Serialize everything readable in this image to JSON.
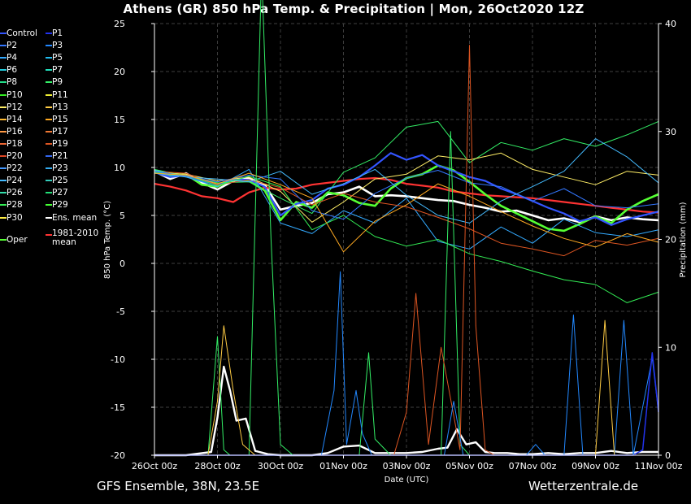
{
  "header": {
    "title": "Athens  (GR)  850 hPa Temp. & Precipitation | Mon, 26Oct2020 12Z"
  },
  "footer": {
    "left": "GFS Ensemble, 38N, 23.5E",
    "right": "Wetterzentrale.de"
  },
  "legend": {
    "items": [
      {
        "label": "Control",
        "color": "#3355ff"
      },
      {
        "label": "P1",
        "color": "#2233ee"
      },
      {
        "label": "P2",
        "color": "#3377ff"
      },
      {
        "label": "P3",
        "color": "#2288ff"
      },
      {
        "label": "P4",
        "color": "#33aaff"
      },
      {
        "label": "P5",
        "color": "#22bbee"
      },
      {
        "label": "P6",
        "color": "#22ccdd"
      },
      {
        "label": "P7",
        "color": "#22ddbb"
      },
      {
        "label": "P8",
        "color": "#22dd88"
      },
      {
        "label": "P9",
        "color": "#33ee66"
      },
      {
        "label": "P10",
        "color": "#33ee22"
      },
      {
        "label": "P11",
        "color": "#eeee33"
      },
      {
        "label": "P12",
        "color": "#ffee66"
      },
      {
        "label": "P13",
        "color": "#ffcc44"
      },
      {
        "label": "P14",
        "color": "#ffbb33"
      },
      {
        "label": "P15",
        "color": "#ffaa22"
      },
      {
        "label": "P16",
        "color": "#ff9944"
      },
      {
        "label": "P17",
        "color": "#ee7733"
      },
      {
        "label": "P18",
        "color": "#ee6633"
      },
      {
        "label": "P19",
        "color": "#dd5522"
      },
      {
        "label": "P20",
        "color": "#dd4422"
      },
      {
        "label": "P21",
        "color": "#3366ee"
      },
      {
        "label": "P22",
        "color": "#4499ff"
      },
      {
        "label": "P23",
        "color": "#33aaee"
      },
      {
        "label": "P24",
        "color": "#44bbff"
      },
      {
        "label": "P25",
        "color": "#33ccbb"
      },
      {
        "label": "P26",
        "color": "#33ddaa"
      },
      {
        "label": "P27",
        "color": "#22dd77"
      },
      {
        "label": "P28",
        "color": "#33ee55"
      },
      {
        "label": "P29",
        "color": "#44ff33"
      },
      {
        "label": "P30",
        "color": "#ffee44"
      },
      {
        "label": "Ens. mean",
        "color": "#ffffff"
      },
      {
        "label": "1981-2010 mean",
        "color": "#ff3333"
      },
      {
        "label": "Oper",
        "color": "#55ff33"
      }
    ]
  },
  "chart_data": {
    "type": "line",
    "title": "Athens  (GR)  850 hPa Temp. & Precipitation | Mon, 26Oct2020 12Z",
    "xlabel": "Date (UTC)",
    "ylabel": "850 hPa Temp. (°C)",
    "ylabel_right": "Precipitation (mm)",
    "x_range_days": [
      0,
      16
    ],
    "ylim": [
      -20,
      25
    ],
    "ylim_right": [
      0,
      40
    ],
    "yticks": [
      -20,
      -15,
      -10,
      -5,
      0,
      5,
      10,
      15,
      20,
      25
    ],
    "yticks_right": [
      0,
      10,
      20,
      30,
      40
    ],
    "xtick_labels": [
      "26Oct 00z",
      "28Oct 00z",
      "30Oct 00z",
      "01Nov 00z",
      "03Nov 00z",
      "05Nov 00z",
      "07Nov 00z",
      "09Nov 00z",
      "11Nov 00z"
    ],
    "xtick_days": [
      0,
      2,
      4,
      6,
      8,
      10,
      12,
      14,
      16
    ],
    "grid": true,
    "legend_position": "left",
    "series": [
      {
        "name": "Ens. mean",
        "kind": "temp",
        "color": "#ffffff",
        "width": 2.6,
        "x": [
          0,
          0.5,
          1,
          1.5,
          2,
          2.5,
          3,
          3.5,
          4,
          4.5,
          5,
          5.5,
          6,
          6.5,
          7,
          7.5,
          8,
          8.5,
          9,
          9.5,
          10,
          10.5,
          11,
          11.5,
          12,
          12.5,
          13,
          13.5,
          14,
          14.5,
          15,
          15.5,
          16
        ],
        "y": [
          9.6,
          8.8,
          9.4,
          8.4,
          7.7,
          8.6,
          8.9,
          8.2,
          5.6,
          6.0,
          6.3,
          7.2,
          7.4,
          8.0,
          7.0,
          7.1,
          7.0,
          6.8,
          6.6,
          6.5,
          6.1,
          5.8,
          5.4,
          5.5,
          5.0,
          4.5,
          4.7,
          4.3,
          4.9,
          4.5,
          4.8,
          4.6,
          4.5
        ]
      },
      {
        "name": "1981-2010 mean",
        "kind": "temp",
        "color": "#ff3333",
        "width": 2.2,
        "x": [
          0,
          0.5,
          1,
          1.5,
          2,
          2.5,
          3,
          3.5,
          4,
          4.5,
          5,
          5.5,
          6,
          6.5,
          7,
          7.5,
          8,
          8.5,
          9,
          9.5,
          10,
          10.5,
          11,
          11.5,
          12,
          12.5,
          13,
          13.5,
          14,
          14.5,
          15,
          15.5,
          16
        ],
        "y": [
          8.3,
          8.0,
          7.6,
          7.0,
          6.8,
          6.4,
          7.4,
          7.9,
          7.7,
          7.8,
          8.2,
          8.4,
          8.6,
          8.8,
          8.9,
          8.7,
          8.3,
          8.1,
          7.9,
          7.5,
          7.3,
          7.1,
          7.0,
          6.9,
          6.8,
          6.6,
          6.4,
          6.2,
          6.0,
          5.8,
          5.6,
          5.4,
          5.3
        ]
      },
      {
        "name": "Oper",
        "kind": "temp",
        "color": "#55ff33",
        "width": 2.6,
        "x": [
          0,
          0.5,
          1,
          1.5,
          2,
          2.5,
          3,
          3.5,
          4,
          4.5,
          5,
          5.5,
          6,
          6.5,
          7,
          7.5,
          8,
          8.5,
          9,
          9.5,
          10,
          10.5,
          11,
          11.5,
          12,
          12.5,
          13,
          13.5,
          14,
          14.5,
          15,
          15.5,
          16
        ],
        "y": [
          9.7,
          9.2,
          9.3,
          8.2,
          8.0,
          8.8,
          8.6,
          7.6,
          4.5,
          6.4,
          5.8,
          7.4,
          7.1,
          6.3,
          6.0,
          7.8,
          8.9,
          9.3,
          10.2,
          9.7,
          8.5,
          7.2,
          6.0,
          5.2,
          4.4,
          3.6,
          3.4,
          4.1,
          4.9,
          4.2,
          5.6,
          6.5,
          7.2
        ]
      },
      {
        "name": "Control",
        "kind": "temp",
        "color": "#3355ff",
        "width": 2.2,
        "x": [
          0,
          0.5,
          1,
          1.5,
          2,
          2.5,
          3,
          3.5,
          4,
          4.5,
          5,
          5.5,
          6,
          6.5,
          7,
          7.5,
          8,
          8.5,
          9,
          9.5,
          10,
          10.5,
          11,
          11.5,
          12,
          12.5,
          13,
          13.5,
          14,
          14.5,
          15,
          15.5,
          16
        ],
        "y": [
          9.5,
          9.0,
          9.2,
          8.6,
          8.2,
          8.8,
          8.7,
          8.0,
          5.0,
          6.2,
          6.6,
          7.8,
          8.2,
          9.0,
          10.2,
          11.5,
          10.8,
          11.3,
          10.2,
          9.6,
          9.0,
          8.6,
          7.8,
          7.2,
          6.5,
          5.8,
          5.2,
          4.4,
          4.8,
          4.0,
          4.6,
          5.0,
          5.4
        ]
      },
      {
        "name": "P4",
        "kind": "temp",
        "color": "#33aaff",
        "width": 1,
        "x": [
          0,
          1,
          2,
          3,
          4,
          5,
          6,
          7,
          8,
          9,
          10,
          11,
          12,
          13,
          14,
          15,
          16
        ],
        "y": [
          9.4,
          9.0,
          8.0,
          9.8,
          4.2,
          3.1,
          5.5,
          4.2,
          6.8,
          2.3,
          1.5,
          3.8,
          2.1,
          4.6,
          3.2,
          2.8,
          3.5
        ]
      },
      {
        "name": "P9",
        "kind": "temp",
        "color": "#33ee66",
        "width": 1,
        "x": [
          0,
          1,
          2,
          3,
          4,
          5,
          6,
          7,
          8,
          9,
          10,
          11,
          12,
          13,
          14,
          15,
          16
        ],
        "y": [
          9.8,
          9.1,
          8.4,
          8.5,
          6.8,
          5.2,
          9.5,
          11.0,
          14.2,
          14.8,
          10.5,
          12.6,
          11.8,
          13.0,
          12.2,
          13.4,
          14.8
        ]
      },
      {
        "name": "P12",
        "kind": "temp",
        "color": "#ffee66",
        "width": 1,
        "x": [
          0,
          1,
          2,
          3,
          4,
          5,
          6,
          7,
          8,
          9,
          10,
          11,
          12,
          13,
          14,
          15,
          16
        ],
        "y": [
          9.5,
          9.3,
          8.6,
          9.0,
          7.5,
          4.3,
          6.4,
          8.8,
          9.3,
          11.2,
          10.8,
          11.5,
          9.8,
          9.0,
          8.2,
          9.6,
          9.2
        ]
      },
      {
        "name": "P19",
        "kind": "temp",
        "color": "#dd5522",
        "width": 1,
        "x": [
          0,
          1,
          2,
          3,
          4,
          5,
          6,
          7,
          8,
          9,
          10,
          11,
          12,
          13,
          14,
          15,
          16
        ],
        "y": [
          9.6,
          9.4,
          8.2,
          8.7,
          7.9,
          6.1,
          7.3,
          6.4,
          5.9,
          4.8,
          3.6,
          2.1,
          1.5,
          0.8,
          2.4,
          1.9,
          2.6
        ]
      },
      {
        "name": "P24",
        "kind": "temp",
        "color": "#44bbff",
        "width": 1,
        "x": [
          0,
          1,
          2,
          3,
          4,
          5,
          6,
          7,
          8,
          9,
          10,
          11,
          12,
          13,
          14,
          15,
          16
        ],
        "y": [
          9.7,
          9.0,
          8.8,
          8.5,
          9.6,
          7.2,
          8.3,
          9.8,
          7.1,
          5.0,
          4.2,
          6.5,
          8.0,
          9.6,
          13.0,
          11.1,
          8.4
        ]
      },
      {
        "name": "P28",
        "kind": "temp",
        "color": "#33ee55",
        "width": 1,
        "x": [
          0,
          1,
          2,
          3,
          4,
          5,
          6,
          7,
          8,
          9,
          10,
          11,
          12,
          13,
          14,
          15,
          16
        ],
        "y": [
          9.5,
          9.2,
          8.1,
          9.1,
          8.0,
          3.5,
          5.0,
          2.8,
          1.8,
          2.5,
          1.0,
          0.2,
          -0.8,
          -1.7,
          -2.2,
          -4.1,
          -3.0
        ]
      },
      {
        "name": "P2",
        "kind": "temp",
        "color": "#3377ff",
        "width": 1,
        "x": [
          0,
          1,
          2,
          3,
          4,
          5,
          6,
          7,
          8,
          9,
          10,
          11,
          12,
          13,
          14,
          15,
          16
        ],
        "y": [
          9.6,
          9.1,
          8.5,
          9.2,
          8.8,
          5.5,
          4.6,
          7.3,
          8.9,
          9.7,
          8.4,
          8.0,
          6.5,
          7.8,
          6.0,
          5.8,
          6.2
        ]
      },
      {
        "name": "P15",
        "kind": "temp",
        "color": "#ffaa22",
        "width": 1,
        "x": [
          0,
          1,
          2,
          3,
          4,
          5,
          6,
          7,
          8,
          9,
          10,
          11,
          12,
          13,
          14,
          15,
          16
        ],
        "y": [
          9.4,
          9.2,
          8.3,
          9.4,
          8.2,
          6.8,
          1.2,
          4.4,
          6.1,
          8.3,
          7.0,
          5.4,
          3.9,
          2.6,
          1.7,
          3.1,
          2.2
        ]
      },
      {
        "name": "Ens. mean precip",
        "kind": "precip",
        "color": "#ffffff",
        "width": 2.4,
        "x": [
          0,
          1,
          1.8,
          2.0,
          2.2,
          2.4,
          2.6,
          2.9,
          3.2,
          3.6,
          4.0,
          4.5,
          5.0,
          5.5,
          6.0,
          6.5,
          7.0,
          7.5,
          8.0,
          8.5,
          9.0,
          9.3,
          9.6,
          9.9,
          10.2,
          10.5,
          10.8,
          11.2,
          11.6,
          12.0,
          12.5,
          13.0,
          13.5,
          14.0,
          14.5,
          15.0,
          15.5,
          16.0
        ],
        "y": [
          0,
          0,
          0.3,
          3.5,
          8.2,
          6.0,
          3.2,
          3.4,
          0.4,
          0.1,
          0,
          0,
          0,
          0.2,
          0.8,
          0.9,
          0.2,
          0.2,
          0.2,
          0.3,
          0.6,
          0.7,
          2.4,
          1.0,
          1.2,
          0.3,
          0.2,
          0.2,
          0.1,
          0.1,
          0.2,
          0.1,
          0.2,
          0.2,
          0.4,
          0.2,
          0.3,
          0.3
        ]
      },
      {
        "name": "P9 precip",
        "kind": "precip",
        "color": "#33ee66",
        "width": 1,
        "x": [
          0,
          1.7,
          2.0,
          2.2,
          2.4,
          3.0,
          3.4,
          3.7,
          4.0,
          4.4,
          6.5,
          6.8,
          7.0,
          7.5,
          8.0,
          8.3,
          9.1,
          9.4,
          9.7,
          10.0,
          10.4,
          11.0,
          16.0
        ],
        "y": [
          0,
          0,
          11.0,
          0.5,
          0,
          0,
          45.0,
          20.0,
          1.0,
          0,
          0,
          9.5,
          1.5,
          0,
          0,
          0,
          0,
          30.0,
          1.0,
          0,
          0,
          0,
          0
        ]
      },
      {
        "name": "P18 precip",
        "kind": "precip",
        "color": "#dd5522",
        "width": 1,
        "x": [
          0,
          7.6,
          8.0,
          8.3,
          8.7,
          9.1,
          9.7,
          10.0,
          10.2,
          10.5,
          10.8,
          11.2,
          16.0
        ],
        "y": [
          0,
          0,
          4.0,
          15.0,
          1.0,
          10.0,
          0.5,
          38.0,
          12.0,
          0.5,
          0,
          0,
          0
        ]
      },
      {
        "name": "P3 precip",
        "kind": "precip",
        "color": "#2288ff",
        "width": 1,
        "x": [
          0,
          5.3,
          5.7,
          5.9,
          6.1,
          6.4,
          6.6,
          6.9,
          9.2,
          9.5,
          9.8,
          11.8,
          12.1,
          12.4,
          13.0,
          13.3,
          13.6,
          14.6,
          14.9,
          15.2,
          15.8,
          16.0
        ],
        "y": [
          0,
          0,
          6.0,
          17.0,
          1.0,
          6.0,
          2.0,
          0,
          0,
          5.0,
          0,
          0,
          1.0,
          0,
          0,
          13.0,
          0,
          0,
          12.5,
          0,
          9.0,
          4.0
        ]
      },
      {
        "name": "P13 precip",
        "kind": "precip",
        "color": "#ffcc44",
        "width": 1,
        "x": [
          0,
          1.7,
          2.0,
          2.2,
          2.5,
          2.8,
          3.2,
          14.0,
          14.3,
          14.6,
          16.0
        ],
        "y": [
          0,
          0,
          5.0,
          12.0,
          6.0,
          1.0,
          0,
          0,
          12.5,
          0,
          0
        ]
      },
      {
        "name": "P1 precip",
        "kind": "precip",
        "color": "#2233ee",
        "width": 1.5,
        "x": [
          0,
          15.2,
          15.5,
          15.8,
          16.0
        ],
        "y": [
          0,
          0,
          0.5,
          9.5,
          4.0
        ]
      }
    ]
  }
}
